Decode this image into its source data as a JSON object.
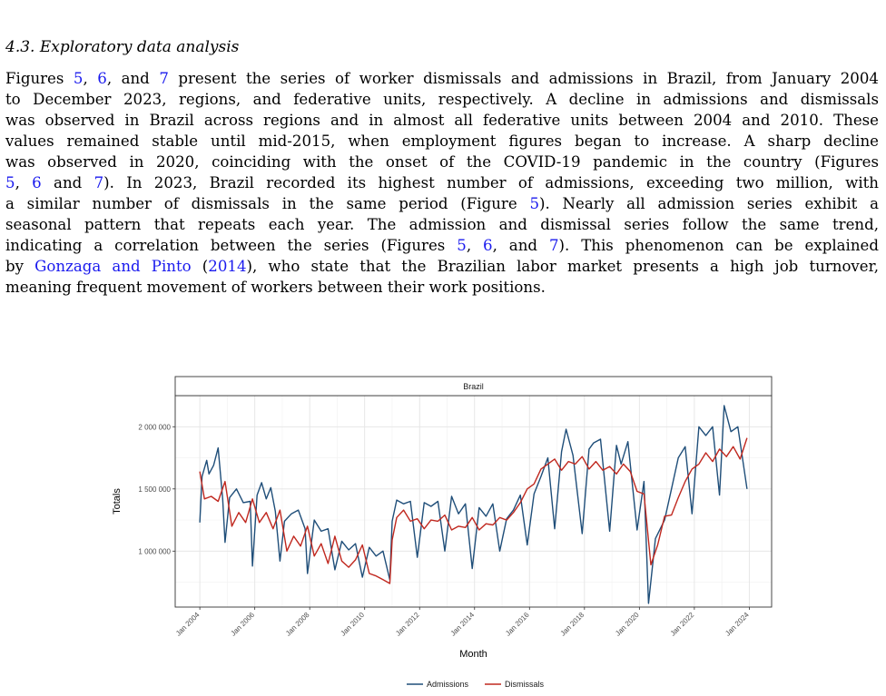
{
  "section": {
    "title": "4.3. Exploratory data analysis"
  },
  "paragraph": {
    "lines": [
      [
        {
          "t": "Figures "
        },
        {
          "t": "5",
          "ref": true
        },
        {
          "t": ", "
        },
        {
          "t": "6",
          "ref": true
        },
        {
          "t": ", and "
        },
        {
          "t": "7",
          "ref": true
        },
        {
          "t": " present the series of worker dismissals and admissions in Brazil, from January 2004"
        }
      ],
      [
        {
          "t": "to December 2023, regions, and federative units, respectively. A decline in admissions and dismissals"
        }
      ],
      [
        {
          "t": "was observed in Brazil across regions and in almost all federative units between 2004 and 2010. These"
        }
      ],
      [
        {
          "t": "values remained stable until mid-2015, when employment figures began to increase. A sharp decline"
        }
      ],
      [
        {
          "t": "was observed in 2020, coinciding with the onset of the COVID-19 pandemic in the country (Figures"
        }
      ],
      [
        {
          "t": "5",
          "ref": true
        },
        {
          "t": ", "
        },
        {
          "t": "6",
          "ref": true
        },
        {
          "t": " and "
        },
        {
          "t": "7",
          "ref": true
        },
        {
          "t": "). In 2023, Brazil recorded its highest number of admissions, exceeding two million, with"
        }
      ],
      [
        {
          "t": "a similar number of dismissals in the same period (Figure "
        },
        {
          "t": "5",
          "ref": true
        },
        {
          "t": "). Nearly all admission series exhibit a"
        }
      ],
      [
        {
          "t": "seasonal pattern that repeats each year. The admission and dismissal series follow the same trend,"
        }
      ],
      [
        {
          "t": "indicating a correlation between the series (Figures "
        },
        {
          "t": "5",
          "ref": true
        },
        {
          "t": ", "
        },
        {
          "t": "6",
          "ref": true
        },
        {
          "t": ", and "
        },
        {
          "t": "7",
          "ref": true
        },
        {
          "t": "). This phenomenon can be explained"
        }
      ],
      [
        {
          "t": "by "
        },
        {
          "t": "Gonzaga and Pinto",
          "ref": true
        },
        {
          "t": " ("
        },
        {
          "t": "2014",
          "ref": true
        },
        {
          "t": "), who state that the Brazilian labor market presents a high job turnover,"
        }
      ],
      [
        {
          "t": "meaning frequent movement of workers between their work positions."
        }
      ]
    ]
  },
  "chart_data": {
    "type": "line",
    "panel_title": "Brazil",
    "xlabel": "Month",
    "ylabel": "Totals",
    "x_range": [
      "2004-01",
      "2023-12"
    ],
    "ylim": [
      550000,
      2250000
    ],
    "x_ticks": [
      "Jan 2004",
      "Jan 2006",
      "Jan 2008",
      "Jan 2010",
      "Jan 2012",
      "Jan 2014",
      "Jan 2016",
      "Jan 2018",
      "Jan 2020",
      "Jan 2022",
      "Jan 2024"
    ],
    "y_ticks": [
      {
        "value": 1000000,
        "label": "1 000 000"
      },
      {
        "value": 1500000,
        "label": "1 500 000"
      },
      {
        "value": 2000000,
        "label": "2 000 000"
      }
    ],
    "grid": true,
    "legend_position": "bottom",
    "colors": {
      "Admissions": "#1f4e79",
      "Dismissals": "#c0281f"
    },
    "series": [
      {
        "name": "Admissions",
        "points": [
          [
            "2004-01",
            1230000
          ],
          [
            "2004-02",
            1600000
          ],
          [
            "2004-04",
            1730000
          ],
          [
            "2004-05",
            1620000
          ],
          [
            "2004-07",
            1690000
          ],
          [
            "2004-09",
            1830000
          ],
          [
            "2004-11",
            1420000
          ],
          [
            "2004-12",
            1070000
          ],
          [
            "2005-02",
            1430000
          ],
          [
            "2005-05",
            1500000
          ],
          [
            "2005-08",
            1390000
          ],
          [
            "2005-11",
            1400000
          ],
          [
            "2005-12",
            880000
          ],
          [
            "2006-02",
            1450000
          ],
          [
            "2006-04",
            1550000
          ],
          [
            "2006-06",
            1420000
          ],
          [
            "2006-08",
            1510000
          ],
          [
            "2006-10",
            1320000
          ],
          [
            "2006-12",
            920000
          ],
          [
            "2007-02",
            1240000
          ],
          [
            "2007-05",
            1300000
          ],
          [
            "2007-08",
            1330000
          ],
          [
            "2007-11",
            1180000
          ],
          [
            "2007-12",
            820000
          ],
          [
            "2008-03",
            1250000
          ],
          [
            "2008-06",
            1160000
          ],
          [
            "2008-09",
            1180000
          ],
          [
            "2008-12",
            850000
          ],
          [
            "2009-03",
            1080000
          ],
          [
            "2009-06",
            1010000
          ],
          [
            "2009-09",
            1060000
          ],
          [
            "2009-12",
            790000
          ],
          [
            "2010-03",
            1030000
          ],
          [
            "2010-06",
            960000
          ],
          [
            "2010-09",
            1000000
          ],
          [
            "2010-12",
            770000
          ],
          [
            "2011-01",
            1240000
          ],
          [
            "2011-03",
            1410000
          ],
          [
            "2011-06",
            1380000
          ],
          [
            "2011-09",
            1400000
          ],
          [
            "2011-12",
            950000
          ],
          [
            "2012-03",
            1390000
          ],
          [
            "2012-06",
            1360000
          ],
          [
            "2012-09",
            1400000
          ],
          [
            "2012-12",
            1000000
          ],
          [
            "2013-03",
            1440000
          ],
          [
            "2013-06",
            1300000
          ],
          [
            "2013-09",
            1380000
          ],
          [
            "2013-12",
            860000
          ],
          [
            "2014-03",
            1350000
          ],
          [
            "2014-06",
            1280000
          ],
          [
            "2014-09",
            1380000
          ],
          [
            "2014-12",
            1000000
          ],
          [
            "2015-03",
            1260000
          ],
          [
            "2015-06",
            1330000
          ],
          [
            "2015-09",
            1450000
          ],
          [
            "2015-12",
            1050000
          ],
          [
            "2016-03",
            1460000
          ],
          [
            "2016-06",
            1600000
          ],
          [
            "2016-09",
            1750000
          ],
          [
            "2016-12",
            1180000
          ],
          [
            "2017-03",
            1800000
          ],
          [
            "2017-05",
            1980000
          ],
          [
            "2017-08",
            1770000
          ],
          [
            "2017-12",
            1140000
          ],
          [
            "2018-03",
            1820000
          ],
          [
            "2018-05",
            1870000
          ],
          [
            "2018-08",
            1900000
          ],
          [
            "2018-12",
            1160000
          ],
          [
            "2019-03",
            1850000
          ],
          [
            "2019-05",
            1700000
          ],
          [
            "2019-08",
            1880000
          ],
          [
            "2019-12",
            1170000
          ],
          [
            "2020-03",
            1560000
          ],
          [
            "2020-05",
            580000
          ],
          [
            "2020-08",
            1100000
          ],
          [
            "2020-12",
            1250000
          ],
          [
            "2021-03",
            1500000
          ],
          [
            "2021-06",
            1750000
          ],
          [
            "2021-09",
            1840000
          ],
          [
            "2021-12",
            1300000
          ],
          [
            "2022-03",
            2000000
          ],
          [
            "2022-06",
            1930000
          ],
          [
            "2022-09",
            2000000
          ],
          [
            "2022-12",
            1450000
          ],
          [
            "2023-02",
            2170000
          ],
          [
            "2023-05",
            1960000
          ],
          [
            "2023-08",
            2000000
          ],
          [
            "2023-12",
            1500000
          ]
        ]
      },
      {
        "name": "Dismissals",
        "points": [
          [
            "2004-01",
            1640000
          ],
          [
            "2004-03",
            1420000
          ],
          [
            "2004-06",
            1440000
          ],
          [
            "2004-09",
            1400000
          ],
          [
            "2004-12",
            1560000
          ],
          [
            "2005-03",
            1200000
          ],
          [
            "2005-06",
            1310000
          ],
          [
            "2005-09",
            1230000
          ],
          [
            "2005-12",
            1420000
          ],
          [
            "2006-03",
            1230000
          ],
          [
            "2006-06",
            1310000
          ],
          [
            "2006-09",
            1180000
          ],
          [
            "2006-12",
            1330000
          ],
          [
            "2007-03",
            1000000
          ],
          [
            "2007-06",
            1120000
          ],
          [
            "2007-09",
            1040000
          ],
          [
            "2007-12",
            1200000
          ],
          [
            "2008-03",
            960000
          ],
          [
            "2008-06",
            1060000
          ],
          [
            "2008-09",
            900000
          ],
          [
            "2008-12",
            1120000
          ],
          [
            "2009-03",
            920000
          ],
          [
            "2009-06",
            870000
          ],
          [
            "2009-09",
            930000
          ],
          [
            "2009-12",
            1050000
          ],
          [
            "2010-03",
            820000
          ],
          [
            "2010-06",
            800000
          ],
          [
            "2010-09",
            770000
          ],
          [
            "2010-12",
            740000
          ],
          [
            "2011-01",
            1090000
          ],
          [
            "2011-03",
            1270000
          ],
          [
            "2011-06",
            1330000
          ],
          [
            "2011-09",
            1240000
          ],
          [
            "2011-12",
            1260000
          ],
          [
            "2012-03",
            1180000
          ],
          [
            "2012-06",
            1250000
          ],
          [
            "2012-09",
            1240000
          ],
          [
            "2012-12",
            1290000
          ],
          [
            "2013-03",
            1170000
          ],
          [
            "2013-06",
            1200000
          ],
          [
            "2013-09",
            1190000
          ],
          [
            "2013-12",
            1270000
          ],
          [
            "2014-03",
            1170000
          ],
          [
            "2014-06",
            1220000
          ],
          [
            "2014-09",
            1210000
          ],
          [
            "2014-12",
            1270000
          ],
          [
            "2015-03",
            1250000
          ],
          [
            "2015-06",
            1310000
          ],
          [
            "2015-09",
            1390000
          ],
          [
            "2015-12",
            1500000
          ],
          [
            "2016-03",
            1540000
          ],
          [
            "2016-06",
            1660000
          ],
          [
            "2016-09",
            1700000
          ],
          [
            "2016-12",
            1740000
          ],
          [
            "2017-03",
            1650000
          ],
          [
            "2017-06",
            1720000
          ],
          [
            "2017-09",
            1700000
          ],
          [
            "2017-12",
            1760000
          ],
          [
            "2018-03",
            1660000
          ],
          [
            "2018-06",
            1720000
          ],
          [
            "2018-09",
            1650000
          ],
          [
            "2018-12",
            1680000
          ],
          [
            "2019-03",
            1620000
          ],
          [
            "2019-06",
            1700000
          ],
          [
            "2019-09",
            1640000
          ],
          [
            "2019-12",
            1480000
          ],
          [
            "2020-03",
            1460000
          ],
          [
            "2020-06",
            890000
          ],
          [
            "2020-09",
            1050000
          ],
          [
            "2020-12",
            1280000
          ],
          [
            "2021-03",
            1290000
          ],
          [
            "2021-06",
            1430000
          ],
          [
            "2021-09",
            1560000
          ],
          [
            "2021-12",
            1660000
          ],
          [
            "2022-03",
            1700000
          ],
          [
            "2022-06",
            1790000
          ],
          [
            "2022-09",
            1720000
          ],
          [
            "2022-12",
            1820000
          ],
          [
            "2023-03",
            1760000
          ],
          [
            "2023-06",
            1840000
          ],
          [
            "2023-09",
            1740000
          ],
          [
            "2023-12",
            1910000
          ]
        ]
      }
    ]
  }
}
